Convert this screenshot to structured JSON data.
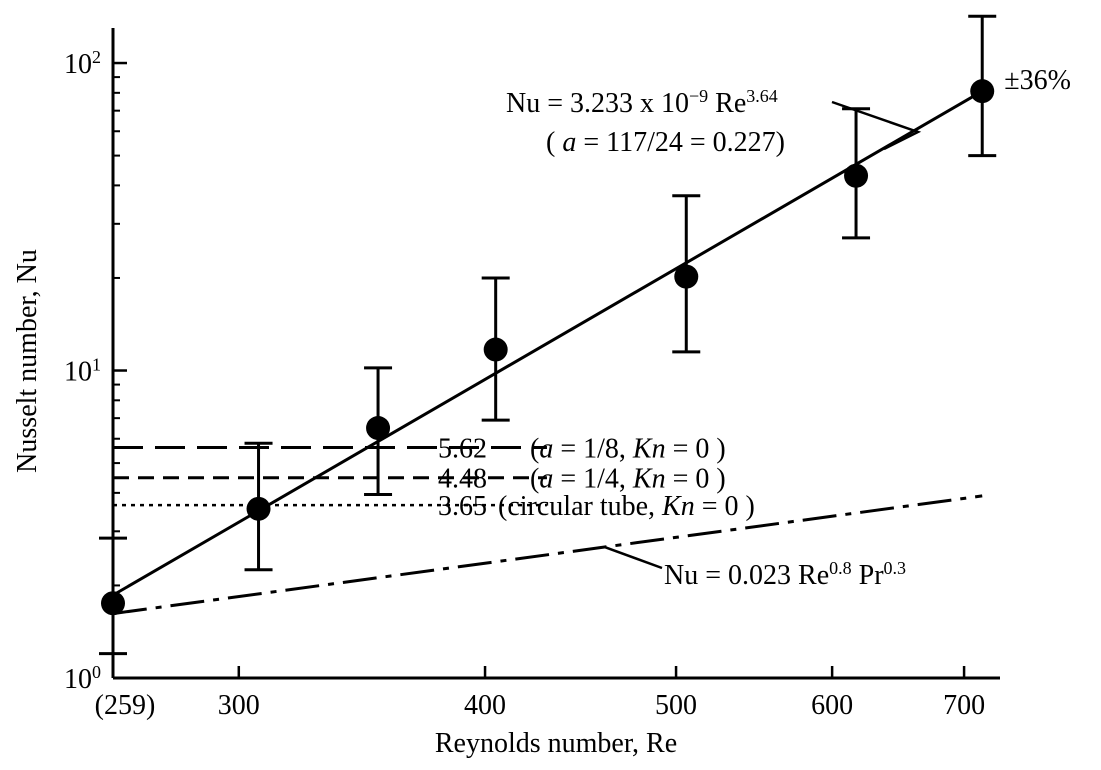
{
  "chart_data": {
    "type": "scatter",
    "title": "",
    "xlabel": "Reynolds number, Re",
    "ylabel": "Nusselt number, Nu",
    "xscale": "log",
    "yscale": "log",
    "xlim": [
      259,
      730
    ],
    "ylim": [
      1,
      130
    ],
    "grid": false,
    "x_ticks": [
      {
        "value": 259,
        "label": "(259)"
      },
      {
        "value": 300,
        "label": "300"
      },
      {
        "value": 400,
        "label": "400"
      },
      {
        "value": 500,
        "label": "500"
      },
      {
        "value": 600,
        "label": "600"
      },
      {
        "value": 700,
        "label": "700"
      }
    ],
    "y_ticks": [
      {
        "value": 1,
        "base": "10",
        "exp": "0"
      },
      {
        "value": 10,
        "base": "10",
        "exp": "1"
      },
      {
        "value": 100,
        "base": "10",
        "exp": "2"
      }
    ],
    "y_minor_ticks": [
      2,
      3,
      4,
      5,
      6,
      7,
      8,
      9,
      20,
      30,
      40,
      50,
      60,
      70,
      80,
      90
    ],
    "series": [
      {
        "style": "markers-with-error-bars",
        "error_label": "±36%",
        "points": [
          {
            "x": 259,
            "y": 1.75,
            "ylow": 1.2,
            "yhigh": 2.85
          },
          {
            "x": 307,
            "y": 3.55,
            "ylow": 2.25,
            "yhigh": 5.8
          },
          {
            "x": 353,
            "y": 6.5,
            "ylow": 3.95,
            "yhigh": 10.2
          },
          {
            "x": 405,
            "y": 11.7,
            "ylow": 6.9,
            "yhigh": 20.0
          },
          {
            "x": 506,
            "y": 20.2,
            "ylow": 11.5,
            "yhigh": 37.0
          },
          {
            "x": 617,
            "y": 43.0,
            "ylow": 27.0,
            "yhigh": 71.0
          },
          {
            "x": 715,
            "y": 81.0,
            "ylow": 50.0,
            "yhigh": 142.0
          }
        ]
      },
      {
        "style": "solid",
        "formula_base": "Nu = 3.233 x 10",
        "formula_exp1": "−9",
        "formula_mid": " Re",
        "formula_exp2": "3.64",
        "note_pre": "( ",
        "note_a": "a",
        "note_post": " = 117/24 = 0.227)",
        "x": [
          259,
          715
        ],
        "y": [
          1.86,
          81.0
        ]
      },
      {
        "style": "long-dash",
        "value": 5.62,
        "value_label": "5.62",
        "cond_pre": "(",
        "cond_a": "a",
        "cond_mid": " = 1/8, ",
        "cond_kn": "Kn",
        "cond_post": " = 0 )",
        "x": [
          259,
          430
        ]
      },
      {
        "style": "medium-dash",
        "value": 4.48,
        "value_label": "4.48",
        "cond_pre": "(",
        "cond_a": "a",
        "cond_mid": " = 1/4, ",
        "cond_kn": "Kn",
        "cond_post": " = 0 )",
        "x": [
          259,
          430
        ]
      },
      {
        "style": "dotted",
        "value": 3.65,
        "value_label": "3.65",
        "cond_pre": "(circular tube, ",
        "cond_kn": "Kn",
        "cond_post": " = 0 )",
        "x": [
          259,
          430
        ]
      },
      {
        "style": "dash-dot",
        "formula_a": "Nu = 0.023 Re",
        "formula_exp1": "0.8",
        "formula_b": " Pr",
        "formula_exp2": "0.3",
        "x": [
          259,
          715
        ],
        "y": [
          1.62,
          3.91
        ]
      }
    ]
  }
}
